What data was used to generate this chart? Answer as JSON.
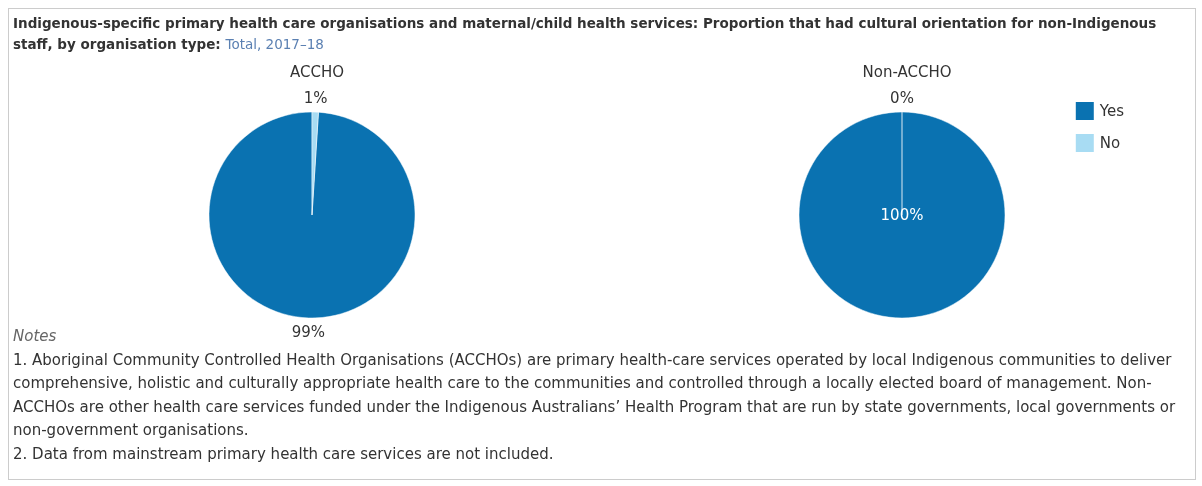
{
  "chart_data": {
    "type": "pie",
    "title": "Indigenous-specific primary health care organisations and maternal/child health services: Proportion that had cultural orientation for non-Indigenous staff, by organisation type:",
    "subtitle": "Total, 2017–18",
    "categories": [
      "Yes",
      "No"
    ],
    "colors": [
      "#0a72b1",
      "#a8dcf3"
    ],
    "legend": "top right",
    "series": [
      {
        "name": "ACCHO",
        "values": [
          99,
          1
        ],
        "value_labels": [
          "99%",
          "1%"
        ]
      },
      {
        "name": "Non-ACCHO",
        "values": [
          100,
          0
        ],
        "value_labels": [
          "100%",
          "0%"
        ]
      }
    ],
    "annotations": [
      "Notes",
      "1. Aboriginal Community Controlled Health Organisations (ACCHOs) are primary health-care services operated by local Indigenous communities to deliver comprehensive, holistic and culturally appropriate health care to the communities and controlled through a locally elected board of management. Non-ACCHOs are other health care services funded under the Indigenous Australians’ Health Program that are run by state governments, local governments or non-government organisations.",
      "2. Data from mainstream primary health care services are not included."
    ]
  }
}
